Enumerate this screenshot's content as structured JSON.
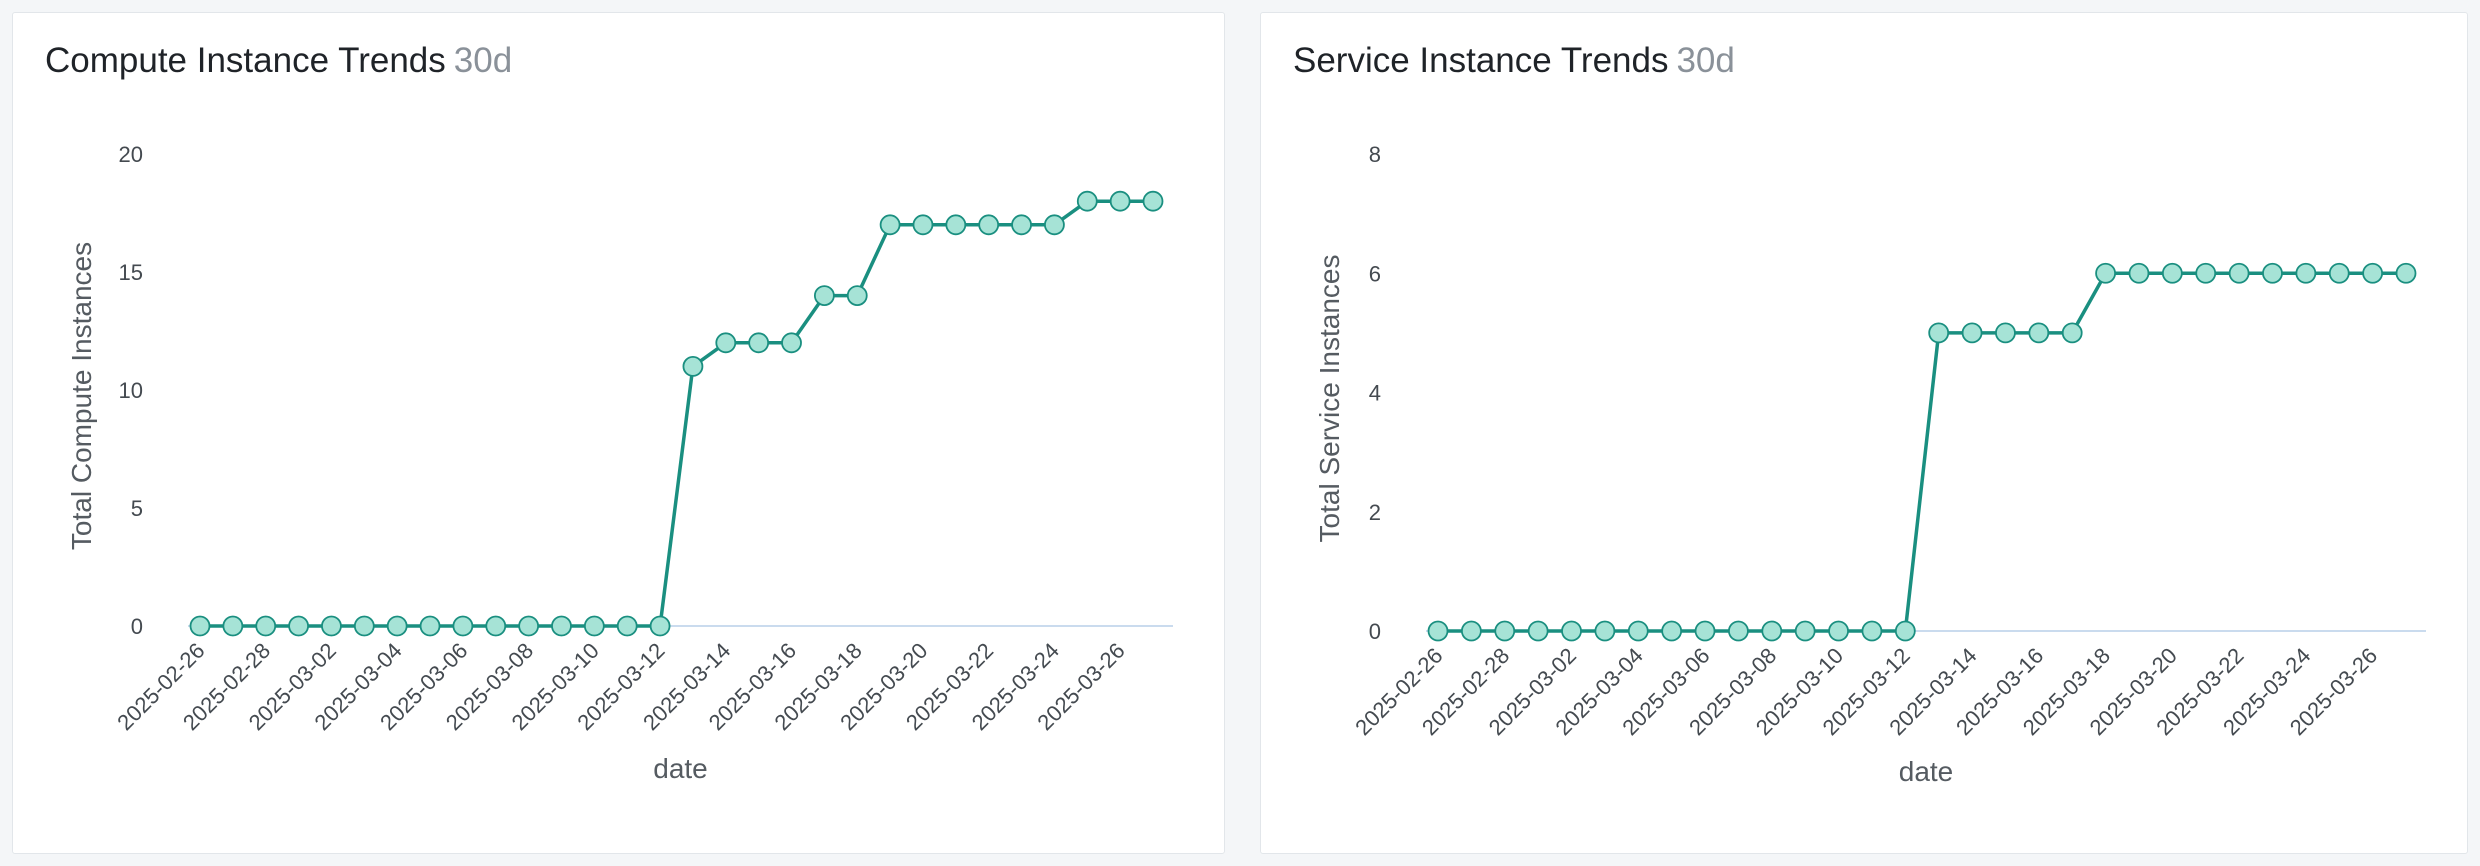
{
  "colors": {
    "line": "#1a8f80",
    "marker_fill": "#a6e3d6",
    "marker_stroke": "#1a8f80",
    "baseline": "#b8cfe8"
  },
  "panels": [
    {
      "title": "Compute Instance Trends",
      "range": "30d"
    },
    {
      "title": "Service Instance Trends",
      "range": "30d"
    }
  ],
  "chart_data": [
    {
      "type": "line",
      "title": "Compute Instance Trends 30d",
      "xlabel": "date",
      "ylabel": "Total Compute Instances",
      "ylim": [
        0,
        20
      ],
      "yticks": [
        0,
        5,
        10,
        15,
        20
      ],
      "x": [
        "2025-02-26",
        "2025-02-27",
        "2025-02-28",
        "2025-03-01",
        "2025-03-02",
        "2025-03-03",
        "2025-03-04",
        "2025-03-05",
        "2025-03-06",
        "2025-03-07",
        "2025-03-08",
        "2025-03-09",
        "2025-03-10",
        "2025-03-11",
        "2025-03-12",
        "2025-03-13",
        "2025-03-14",
        "2025-03-15",
        "2025-03-16",
        "2025-03-17",
        "2025-03-18",
        "2025-03-19",
        "2025-03-20",
        "2025-03-21",
        "2025-03-22",
        "2025-03-23",
        "2025-03-24",
        "2025-03-25",
        "2025-03-26",
        "2025-03-27"
      ],
      "xtick_labels": [
        "2025-02-26",
        "2025-02-28",
        "2025-03-02",
        "2025-03-04",
        "2025-03-06",
        "2025-03-08",
        "2025-03-10",
        "2025-03-12",
        "2025-03-14",
        "2025-03-16",
        "2025-03-18",
        "2025-03-20",
        "2025-03-22",
        "2025-03-24",
        "2025-03-26"
      ],
      "series": [
        {
          "name": "Total Compute Instances",
          "values": [
            0,
            0,
            0,
            0,
            0,
            0,
            0,
            0,
            0,
            0,
            0,
            0,
            0,
            0,
            0,
            11,
            12,
            12,
            12,
            14,
            14,
            17,
            17,
            17,
            17,
            17,
            17,
            18,
            18,
            18
          ]
        }
      ]
    },
    {
      "type": "line",
      "title": "Service Instance Trends 30d",
      "xlabel": "date",
      "ylabel": "Total Service Instances",
      "ylim": [
        0,
        8
      ],
      "yticks": [
        0,
        2,
        4,
        6,
        8
      ],
      "x": [
        "2025-02-26",
        "2025-02-27",
        "2025-02-28",
        "2025-03-01",
        "2025-03-02",
        "2025-03-03",
        "2025-03-04",
        "2025-03-05",
        "2025-03-06",
        "2025-03-07",
        "2025-03-08",
        "2025-03-09",
        "2025-03-10",
        "2025-03-11",
        "2025-03-12",
        "2025-03-13",
        "2025-03-14",
        "2025-03-15",
        "2025-03-16",
        "2025-03-17",
        "2025-03-18",
        "2025-03-19",
        "2025-03-20",
        "2025-03-21",
        "2025-03-22",
        "2025-03-23",
        "2025-03-24",
        "2025-03-25",
        "2025-03-26",
        "2025-03-27"
      ],
      "xtick_labels": [
        "2025-02-26",
        "2025-02-28",
        "2025-03-02",
        "2025-03-04",
        "2025-03-06",
        "2025-03-08",
        "2025-03-10",
        "2025-03-12",
        "2025-03-14",
        "2025-03-16",
        "2025-03-18",
        "2025-03-20",
        "2025-03-22",
        "2025-03-24",
        "2025-03-26"
      ],
      "series": [
        {
          "name": "Total Service Instances",
          "values": [
            0,
            0,
            0,
            0,
            0,
            0,
            0,
            0,
            0,
            0,
            0,
            0,
            0,
            0,
            0,
            5,
            5,
            5,
            5,
            5,
            6,
            6,
            6,
            6,
            6,
            6,
            6,
            6,
            6,
            6
          ]
        }
      ]
    }
  ]
}
